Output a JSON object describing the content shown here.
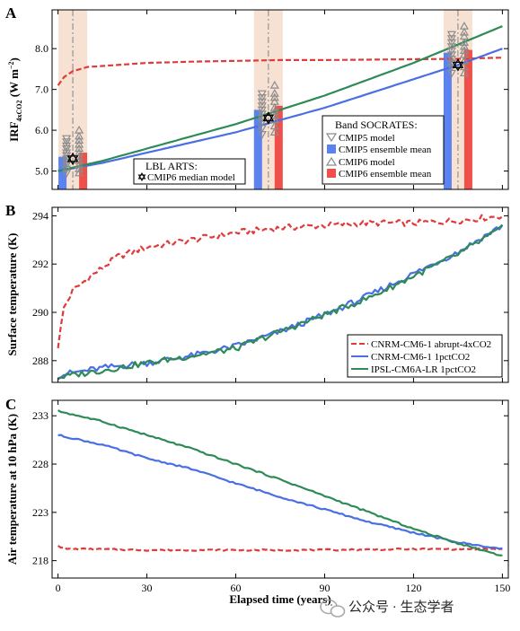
{
  "colors": {
    "red": "#e03a3a",
    "blue": "#4a6fe3",
    "green": "#2e8b57",
    "gray": "#8c8c8c",
    "band": "#f6e1d2",
    "bar_red": "#f0504a",
    "bar_blue": "#5c82f0"
  },
  "watermark": {
    "icon": "wechat-icon",
    "text": "公众号 · 生态学者"
  },
  "x_axis": {
    "label": "Elapsed time (years)",
    "ticks": [
      "0",
      "30",
      "60",
      "90",
      "120",
      "150"
    ]
  },
  "panels": {
    "A": {
      "letter": "A",
      "ylabel_main": "IRF",
      "ylabel_sub": "4xCO2",
      "ylabel_unit": " (W m",
      "ylabel_exp": "−2",
      "ylabel_close": ")",
      "yticks": [
        "5.0",
        "6.0",
        "7.0",
        "8.0"
      ],
      "legend_socrates": {
        "title": "Band SOCRATES:",
        "items": [
          "CMIP5 model",
          "CMIP5 ensemble mean",
          "CMIP6 model",
          "CMIP6 ensemble mean"
        ]
      },
      "legend_lbl": {
        "title": "LBL ARTS:",
        "item": "CMIP6 median model"
      }
    },
    "B": {
      "letter": "B",
      "ylabel": "Surface temperature (K)",
      "yticks": [
        "288",
        "290",
        "292",
        "294"
      ],
      "legend": [
        "CNRM-CM6-1 abrupt-4xCO2",
        "CNRM-CM6-1 1pctCO2",
        "IPSL-CM6A-LR 1pctCO2"
      ]
    },
    "C": {
      "letter": "C",
      "ylabel": "Air temperature at 10 hPa (K)",
      "yticks": [
        "218",
        "223",
        "228",
        "233"
      ]
    }
  },
  "chart_data": [
    {
      "type": "line",
      "panel": "A",
      "xlabel": "Elapsed time (years)",
      "ylabel": "IRF4xCO2 (W m−2)",
      "xlim": [
        -2,
        152
      ],
      "ylim": [
        4.55,
        8.95
      ],
      "series": [
        {
          "x": [
            0,
            2,
            5,
            10,
            20,
            30,
            45,
            60,
            75,
            90,
            105,
            120,
            135,
            150
          ],
          "y": [
            7.1,
            7.3,
            7.45,
            7.55,
            7.6,
            7.65,
            7.68,
            7.7,
            7.72,
            7.72,
            7.73,
            7.74,
            7.75,
            7.78
          ]
        },
        {
          "x": [
            0,
            15,
            30,
            45,
            60,
            75,
            90,
            105,
            120,
            135,
            150
          ],
          "y": [
            5.0,
            5.2,
            5.45,
            5.7,
            5.95,
            6.25,
            6.55,
            6.9,
            7.25,
            7.6,
            8.0
          ]
        },
        {
          "x": [
            0,
            15,
            30,
            45,
            60,
            75,
            90,
            105,
            120,
            135,
            150
          ],
          "y": [
            5.0,
            5.25,
            5.55,
            5.85,
            6.15,
            6.5,
            6.85,
            7.25,
            7.65,
            8.1,
            8.55
          ]
        }
      ],
      "snapshots": [
        {
          "year": 5,
          "cmip5_mean": 5.35,
          "cmip6_mean": 5.45,
          "lbl_median": 5.3,
          "cmip5_models": [
            4.95,
            5.05,
            5.15,
            5.22,
            5.3,
            5.38,
            5.45,
            5.55,
            5.62,
            5.72,
            5.8
          ],
          "cmip6_models": [
            4.95,
            5.05,
            5.15,
            5.25,
            5.35,
            5.45,
            5.55,
            5.65,
            5.75,
            5.85,
            6.0
          ]
        },
        {
          "year": 71,
          "cmip5_mean": 6.5,
          "cmip6_mean": 6.6,
          "lbl_median": 6.3,
          "cmip5_models": [
            5.9,
            6.05,
            6.2,
            6.3,
            6.4,
            6.5,
            6.6,
            6.7,
            6.8,
            6.9
          ],
          "cmip6_models": [
            5.95,
            6.1,
            6.25,
            6.35,
            6.45,
            6.55,
            6.7,
            6.8,
            6.9,
            7.1
          ]
        },
        {
          "year": 135,
          "cmip5_mean": 7.9,
          "cmip6_mean": 7.97,
          "lbl_median": 7.6,
          "cmip5_models": [
            7.4,
            7.55,
            7.65,
            7.75,
            7.85,
            7.95,
            8.05,
            8.15,
            8.25,
            8.35
          ],
          "cmip6_models": [
            7.4,
            7.55,
            7.7,
            7.85,
            7.95,
            8.05,
            8.15,
            8.3,
            8.4,
            8.55
          ]
        }
      ]
    },
    {
      "type": "line",
      "panel": "B",
      "xlabel": "",
      "ylabel": "Surface temperature (K)",
      "xlim": [
        -2,
        152
      ],
      "ylim": [
        287.1,
        294.35
      ],
      "series": [
        {
          "name": "CNRM-CM6-1 abrupt-4xCO2",
          "x": [
            0,
            2,
            5,
            10,
            20,
            30,
            45,
            60,
            75,
            90,
            105,
            120,
            135,
            150
          ],
          "y": [
            288.6,
            290.2,
            290.9,
            291.4,
            292.3,
            292.7,
            293.0,
            293.3,
            293.5,
            293.6,
            293.7,
            293.7,
            293.8,
            294.0
          ]
        },
        {
          "name": "CNRM-CM6-1 1pctCO2",
          "x": [
            0,
            15,
            30,
            45,
            60,
            75,
            90,
            105,
            120,
            135,
            150
          ],
          "y": [
            287.4,
            287.7,
            287.9,
            288.2,
            288.6,
            289.2,
            289.9,
            290.7,
            291.6,
            292.5,
            293.6
          ]
        },
        {
          "name": "IPSL-CM6A-LR 1pctCO2",
          "x": [
            0,
            15,
            30,
            45,
            60,
            75,
            90,
            105,
            120,
            135,
            150
          ],
          "y": [
            287.3,
            287.6,
            287.9,
            288.2,
            288.5,
            289.2,
            289.9,
            290.6,
            291.5,
            292.4,
            293.5
          ]
        }
      ]
    },
    {
      "type": "line",
      "panel": "C",
      "xlabel": "Elapsed time (years)",
      "ylabel": "Air temperature at 10 hPa (K)",
      "xlim": [
        -2,
        152
      ],
      "ylim": [
        216.2,
        234.6
      ],
      "series": [
        {
          "name": "CNRM-CM6-1 abrupt-4xCO2",
          "x": [
            0,
            1,
            3,
            10,
            30,
            60,
            90,
            120,
            150
          ],
          "y": [
            219.6,
            219.4,
            219.2,
            219.2,
            219.1,
            219.1,
            219.1,
            219.2,
            219.2
          ]
        },
        {
          "name": "CNRM-CM6-1 1pctCO2",
          "x": [
            0,
            15,
            30,
            45,
            60,
            75,
            90,
            105,
            120,
            135,
            150
          ],
          "y": [
            231.0,
            230.0,
            228.6,
            227.5,
            226.0,
            224.6,
            223.3,
            222.0,
            220.9,
            219.9,
            219.2
          ]
        },
        {
          "name": "IPSL-CM6A-LR 1pctCO2",
          "x": [
            0,
            15,
            30,
            45,
            60,
            75,
            90,
            105,
            120,
            135,
            150
          ],
          "y": [
            233.5,
            232.4,
            231.0,
            229.6,
            228.0,
            226.4,
            224.7,
            223.0,
            221.3,
            219.8,
            218.5
          ]
        }
      ]
    }
  ]
}
